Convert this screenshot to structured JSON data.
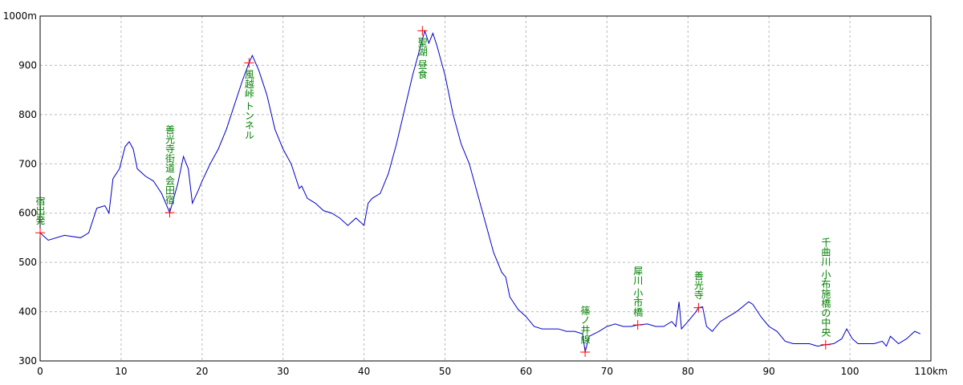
{
  "chart_data": {
    "type": "line",
    "x": [
      0,
      1,
      3,
      5,
      6,
      7,
      8,
      8.5,
      9,
      9.8,
      10.5,
      11,
      11.5,
      12,
      13,
      14,
      15,
      16,
      17,
      17.7,
      18.3,
      18.8,
      19.5,
      20,
      21,
      22,
      23,
      24,
      25,
      25.8,
      26.2,
      27,
      28,
      29,
      30,
      31,
      32,
      32.3,
      33,
      34,
      35,
      36,
      37,
      38,
      39,
      40,
      40.5,
      41,
      42,
      43,
      44,
      45,
      46,
      47,
      47.5,
      48,
      48.5,
      49,
      50,
      51,
      52,
      53,
      54,
      55,
      56,
      57,
      57.5,
      58,
      59,
      60,
      61,
      62,
      63,
      64,
      65,
      66,
      67,
      67.3,
      67.8,
      69,
      70,
      71,
      72,
      73,
      73.8,
      75,
      76,
      77,
      78,
      78.5,
      78.9,
      79.2,
      80,
      81,
      81.3,
      81.8,
      82.3,
      83,
      84,
      85,
      86,
      87.5,
      88,
      89,
      90,
      91,
      92,
      93,
      94,
      95,
      96,
      97,
      98,
      99,
      99.6,
      100.3,
      101,
      102,
      103,
      104,
      104.5,
      105,
      106,
      107,
      108,
      108.7
    ],
    "series": [
      {
        "color": "#0000cc",
        "values": [
          560,
          545,
          555,
          550,
          560,
          610,
          615,
          600,
          670,
          690,
          735,
          745,
          730,
          690,
          675,
          665,
          640,
          601,
          660,
          715,
          690,
          620,
          645,
          665,
          700,
          730,
          770,
          820,
          870,
          905,
          920,
          890,
          840,
          770,
          730,
          700,
          650,
          655,
          630,
          620,
          605,
          600,
          590,
          575,
          590,
          575,
          620,
          630,
          640,
          680,
          740,
          810,
          880,
          940,
          970,
          945,
          965,
          940,
          880,
          800,
          740,
          700,
          640,
          580,
          520,
          480,
          470,
          430,
          405,
          390,
          370,
          365,
          365,
          365,
          360,
          360,
          355,
          318,
          350,
          360,
          370,
          375,
          370,
          370,
          373,
          375,
          370,
          370,
          380,
          370,
          420,
          365,
          380,
          400,
          408,
          410,
          370,
          360,
          380,
          390,
          400,
          420,
          415,
          390,
          370,
          360,
          340,
          335,
          335,
          335,
          330,
          333,
          335,
          345,
          365,
          345,
          335,
          335,
          335,
          340,
          330,
          350,
          335,
          345,
          360,
          355
        ]
      }
    ],
    "xlim": [
      0,
      110
    ],
    "ylim": [
      300,
      1000
    ],
    "xticks": [
      0,
      10,
      20,
      30,
      40,
      50,
      60,
      70,
      80,
      90,
      100,
      {
        "value": 110,
        "label": "110km"
      }
    ],
    "yticks": [
      300,
      400,
      500,
      600,
      700,
      800,
      900,
      {
        "value": 1000,
        "label": "1000m"
      }
    ],
    "grid": true,
    "annotations": [
      {
        "x": 0,
        "y": 560,
        "label": "宿出発"
      },
      {
        "x": 16,
        "y": 601,
        "label": "善光寺街道 会田宿"
      },
      {
        "x": 25.8,
        "y": 905,
        "label": "風越峠 トンネル"
      },
      {
        "x": 47.2,
        "y": 970,
        "label": "聖湖 昼食"
      },
      {
        "x": 67.3,
        "y": 318,
        "label": "篠ノ井線"
      },
      {
        "x": 73.8,
        "y": 373,
        "label": "犀川 小市橋"
      },
      {
        "x": 81.3,
        "y": 408,
        "label": "善光寺"
      },
      {
        "x": 97,
        "y": 333,
        "label": "千曲川 小布施橋の中央"
      }
    ]
  }
}
